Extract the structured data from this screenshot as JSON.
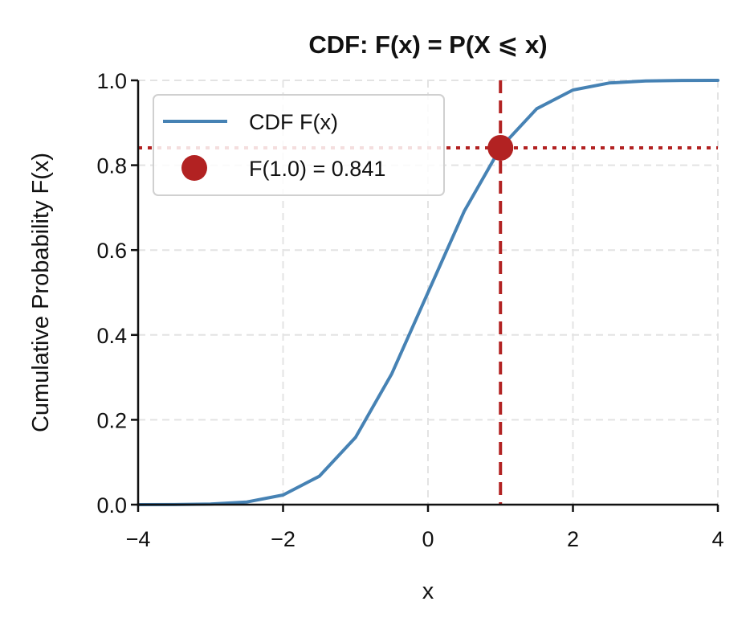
{
  "chart_data": {
    "type": "line",
    "title": "CDF: F(x) = P(X ⩽ x)",
    "xlabel": "x",
    "ylabel": "Cumulative Probability F(x)",
    "xlim": [
      -4,
      4
    ],
    "ylim": [
      0,
      1
    ],
    "xticks": [
      -4,
      -2,
      0,
      2,
      4
    ],
    "xtick_labels": [
      "−4",
      "−2",
      "0",
      "2",
      "4"
    ],
    "yticks": [
      0,
      0.2,
      0.4,
      0.6,
      0.8,
      1.0
    ],
    "ytick_labels": [
      "0.0",
      "0.2",
      "0.4",
      "0.6",
      "0.8",
      "1.0"
    ],
    "grid": true,
    "legend_position": "top-left",
    "series": [
      {
        "name": "CDF F(x)",
        "kind": "line",
        "color": "#4682b4",
        "x": [
          -4.0,
          -3.5,
          -3.0,
          -2.5,
          -2.0,
          -1.5,
          -1.0,
          -0.5,
          0.0,
          0.5,
          1.0,
          1.5,
          2.0,
          2.5,
          3.0,
          3.5,
          4.0
        ],
        "y": [
          0.0,
          0.0002,
          0.0013,
          0.0062,
          0.0228,
          0.0668,
          0.1587,
          0.3085,
          0.5,
          0.6915,
          0.8413,
          0.9332,
          0.9772,
          0.9938,
          0.9987,
          0.9998,
          1.0
        ]
      },
      {
        "name": "F(1.0) = 0.841",
        "kind": "point",
        "color": "#b22222",
        "x": [
          1.0
        ],
        "y": [
          0.841
        ]
      }
    ],
    "reference_lines": [
      {
        "orientation": "vertical",
        "value": 1.0,
        "style": "dashed",
        "color": "#b22222"
      },
      {
        "orientation": "horizontal",
        "value": 0.841,
        "style": "dotted",
        "color": "#b22222"
      }
    ]
  }
}
